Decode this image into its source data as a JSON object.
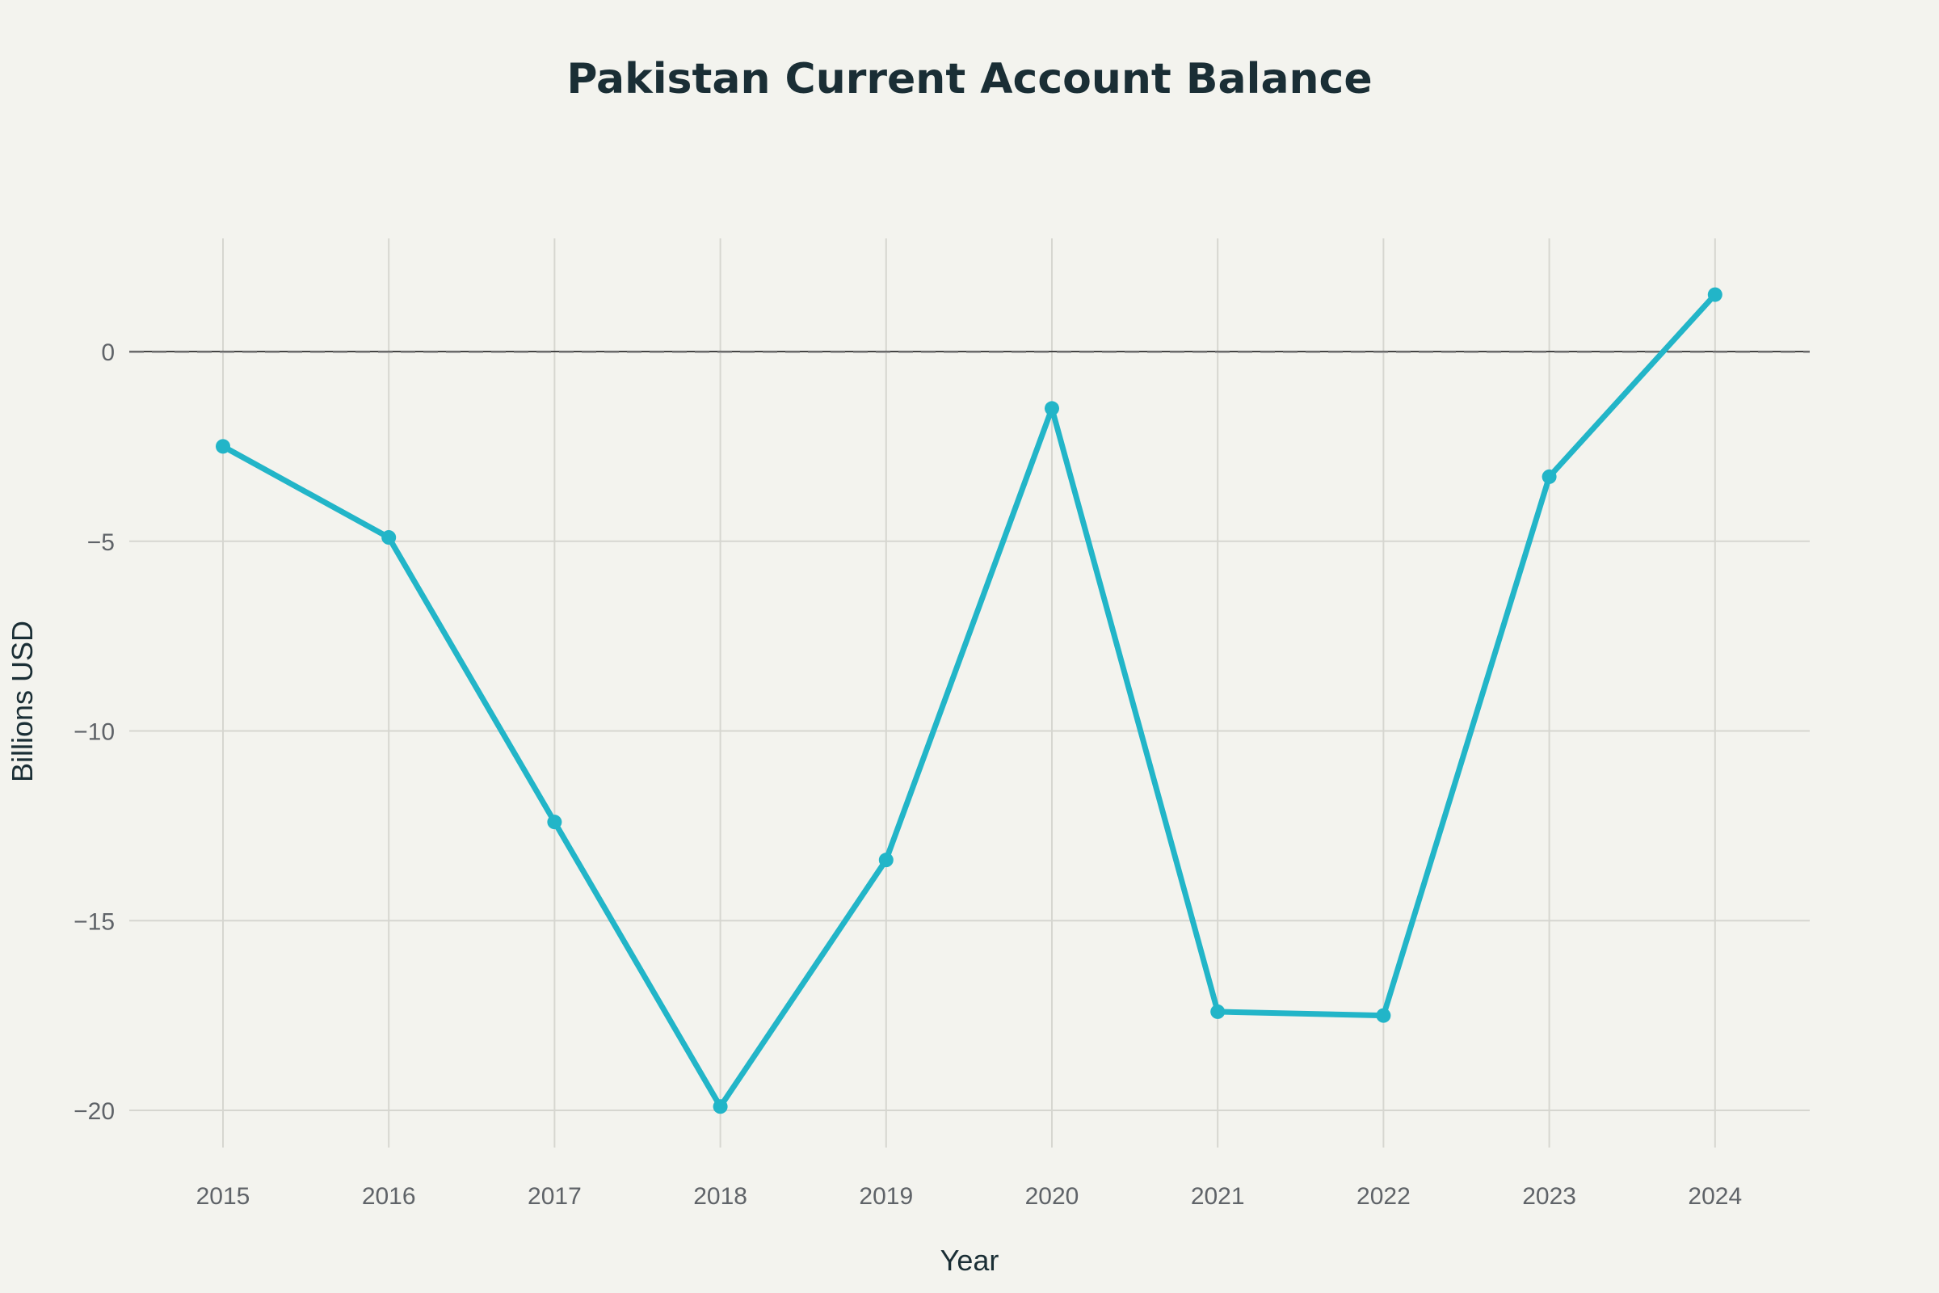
{
  "chart_data": {
    "type": "line",
    "title": "Pakistan Current Account Balance",
    "xlabel": "Year",
    "ylabel": "Billions USD",
    "x": [
      "2015",
      "2016",
      "2017",
      "2018",
      "2019",
      "2020",
      "2021",
      "2022",
      "2023",
      "2024"
    ],
    "series": [
      {
        "values": [
          -2.5,
          -4.9,
          -12.4,
          -19.9,
          -13.4,
          -1.5,
          -17.4,
          -17.5,
          -3.3,
          1.5
        ]
      }
    ],
    "ylim": [
      -21,
      3
    ],
    "yticks": [
      0,
      -5,
      -10,
      -15,
      -20
    ],
    "ytick_labels": [
      "0",
      "−5",
      "−10",
      "−15",
      "−20"
    ],
    "reference_line": {
      "y": 0,
      "style": "dashed"
    },
    "grid": true,
    "legend": "none",
    "colors": {
      "line": "#22b5c8",
      "background": "#f3f3ee",
      "title": "#1a2e35"
    }
  }
}
